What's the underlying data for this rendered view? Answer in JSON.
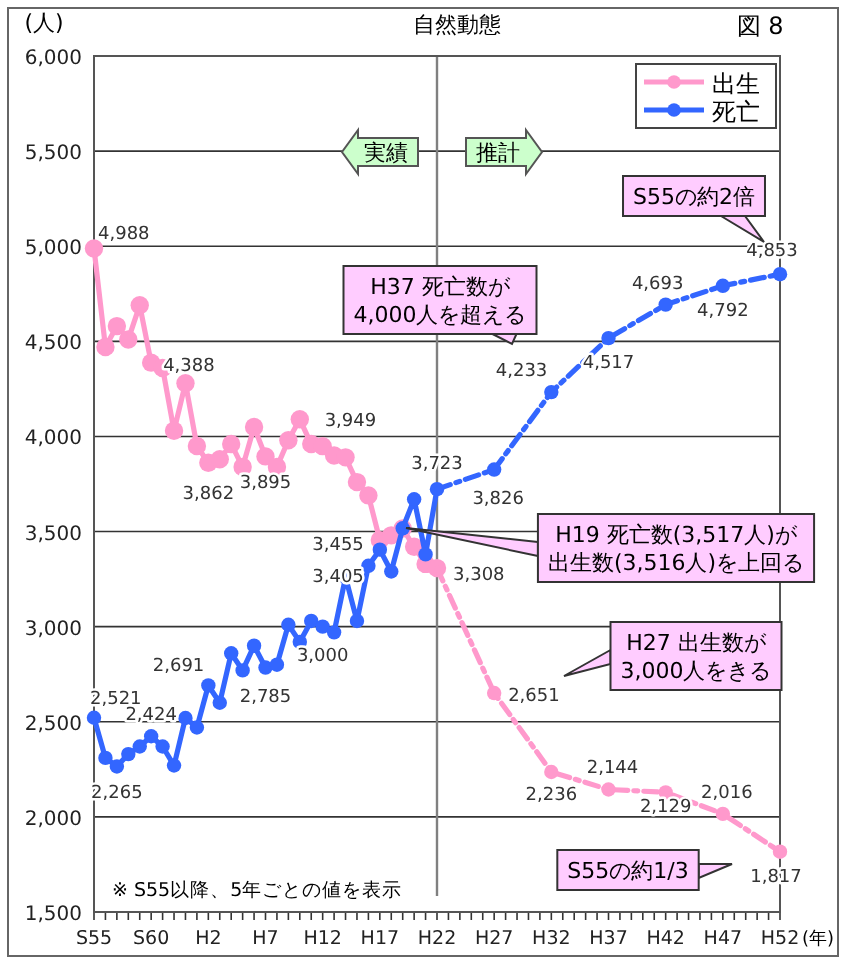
{
  "chart_data": {
    "type": "line",
    "title": "自然動態",
    "ylabel": "(人)",
    "xlabel": "(年)",
    "annotations": [
      "実績",
      "推計",
      "S55の約2倍",
      "H37 死亡数が4,000人を超える",
      "H19  死亡数(3,517人)が出生数(3,516人)を上回る",
      "H27 出生数が3,000人をきる",
      "S55の約1/3",
      "※  S55以降、5年ごとの値を表示",
      "図 8"
    ],
    "categories": [
      "S55",
      null,
      null,
      null,
      null,
      "S60",
      null,
      null,
      null,
      null,
      "H2",
      null,
      null,
      null,
      null,
      "H7",
      null,
      null,
      null,
      null,
      "H12",
      null,
      null,
      null,
      null,
      "H17",
      null,
      null,
      null,
      null,
      "H22",
      null,
      null,
      null,
      null,
      "H27",
      null,
      null,
      null,
      null,
      "H32",
      null,
      null,
      null,
      null,
      "H37",
      null,
      null,
      null,
      null,
      "H42",
      null,
      null,
      null,
      null,
      "H47",
      null,
      null,
      null,
      null,
      "H52"
    ],
    "ylim": [
      1500,
      6000
    ],
    "yticks": [
      {
        "value": 1500,
        "label": "1,500"
      },
      {
        "value": 2000,
        "label": "2,000"
      },
      {
        "value": 2500,
        "label": "2,500"
      },
      {
        "value": 3000,
        "label": "3,000"
      },
      {
        "value": 3500,
        "label": "3,500"
      },
      {
        "value": 4000,
        "label": "4,000"
      },
      {
        "value": 4500,
        "label": "4,500"
      },
      {
        "value": 5000,
        "label": "5,000"
      },
      {
        "value": 5500,
        "label": "5,500"
      },
      {
        "value": 6000,
        "label": "6,000"
      }
    ],
    "grid": "y",
    "legend": "top right",
    "marker": "circle",
    "ref_lines": [
      {
        "axis": "x",
        "value": "H22",
        "color": "#808080"
      }
    ],
    "series": [
      {
        "name": "出生",
        "color": "#ff99cc",
        "line_style": "solid",
        "values": [
          4988,
          4470,
          4580,
          4510,
          4690,
          4388,
          4360,
          4030,
          4280,
          3950,
          3862,
          3880,
          3960,
          3840,
          4050,
          3895,
          3840,
          3980,
          4090,
          3960,
          3949,
          3900,
          3890,
          3760,
          3690,
          3455,
          3480,
          3516,
          3420,
          3330,
          3308,
          null,
          null,
          null,
          null,
          null,
          null,
          null,
          null,
          null,
          null,
          null,
          null,
          null,
          null,
          null,
          null,
          null,
          null,
          null,
          null,
          null,
          null,
          null,
          null,
          null,
          null,
          null,
          null,
          null,
          null
        ],
        "value_labels": [
          "4,988",
          null,
          null,
          null,
          null,
          "4,388",
          null,
          null,
          null,
          null,
          "3,862",
          null,
          null,
          null,
          null,
          "3,895",
          null,
          null,
          null,
          null,
          "3,949",
          null,
          null,
          null,
          null,
          "3,455",
          null,
          null,
          null,
          null,
          "3,308",
          null,
          null,
          null,
          null,
          null,
          null,
          null,
          null,
          null,
          null,
          null,
          null,
          null,
          null,
          null,
          null,
          null,
          null,
          null,
          null,
          null,
          null,
          null,
          null,
          null,
          null,
          null,
          null,
          null,
          null
        ]
      },
      {
        "name": "死亡",
        "color": "#3366ff",
        "line_style": "solid",
        "values": [
          2521,
          2310,
          2265,
          2330,
          2370,
          2424,
          2370,
          2270,
          2520,
          2470,
          2691,
          2600,
          2860,
          2770,
          2900,
          2785,
          2800,
          3010,
          2920,
          3030,
          3000,
          2970,
          3260,
          3030,
          3320,
          3405,
          3290,
          3517,
          3670,
          3380,
          3723,
          null,
          null,
          null,
          null,
          null,
          null,
          null,
          null,
          null,
          null,
          null,
          null,
          null,
          null,
          null,
          null,
          null,
          null,
          null,
          null,
          null,
          null,
          null,
          null,
          null,
          null,
          null,
          null,
          null,
          null
        ],
        "value_labels": [
          "2,521",
          null,
          "2,265",
          null,
          null,
          "2,424",
          null,
          null,
          null,
          null,
          "2,691",
          null,
          null,
          null,
          null,
          "2,785",
          null,
          null,
          null,
          null,
          "3,000",
          null,
          null,
          null,
          null,
          "3,405",
          null,
          null,
          null,
          null,
          "3,723",
          null,
          null,
          null,
          null,
          null,
          null,
          null,
          null,
          null,
          null,
          null,
          null,
          null,
          null,
          null,
          null,
          null,
          null,
          null,
          null,
          null,
          null,
          null,
          null,
          null,
          null,
          null,
          null,
          null,
          null
        ]
      },
      {
        "color": "#ff99cc",
        "line_style": "dashed",
        "x": [
          "H22",
          "H27",
          "H32",
          "H37",
          "H42",
          "H47",
          "H52"
        ],
        "values": [
          3308,
          2651,
          2236,
          2144,
          2129,
          2016,
          1817
        ],
        "value_labels": [
          null,
          "2,651",
          "2,236",
          "2,144",
          "2,129",
          "2,016",
          "1,817"
        ]
      },
      {
        "color": "#3366ff",
        "line_style": "dashed",
        "x": [
          "H22",
          "H27",
          "H32",
          "H37",
          "H42",
          "H47",
          "H52"
        ],
        "values": [
          3723,
          3826,
          4233,
          4517,
          4693,
          4792,
          4853
        ],
        "value_labels": [
          null,
          "3,826",
          "4,233",
          "4,517",
          "4,693",
          "4,792",
          "4,853"
        ]
      }
    ]
  }
}
